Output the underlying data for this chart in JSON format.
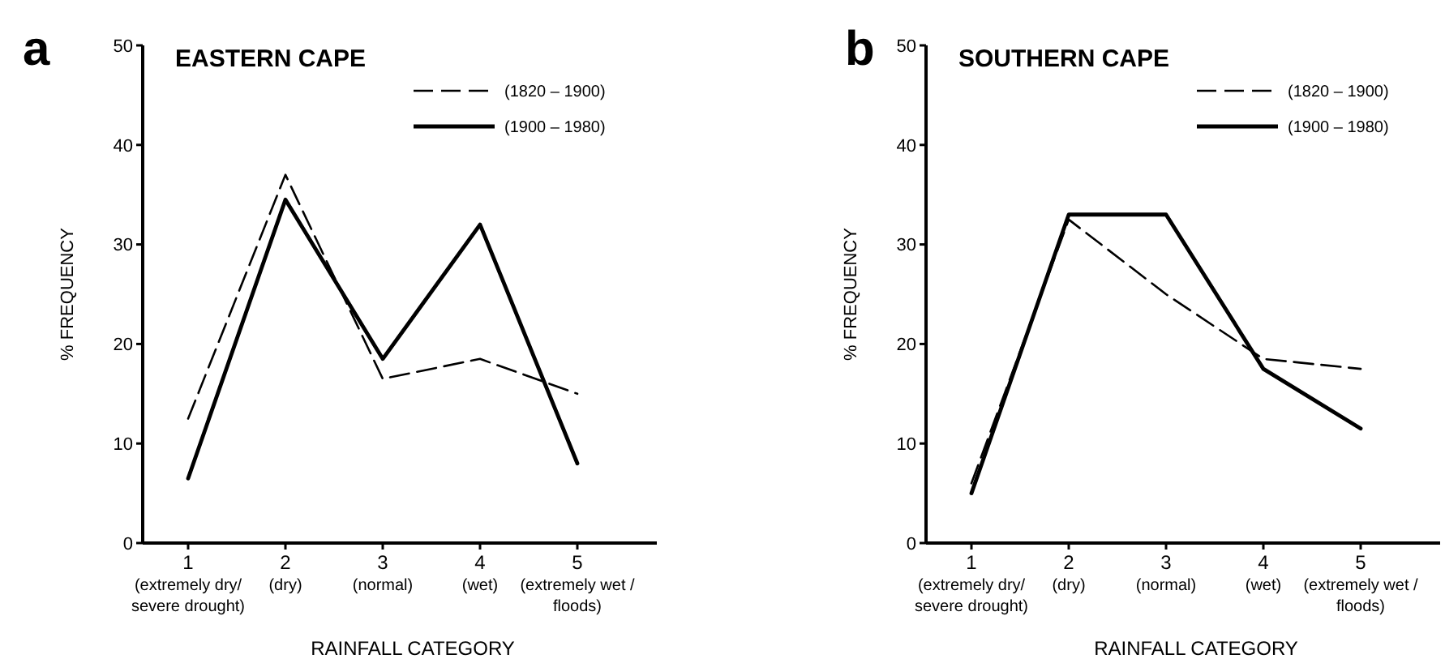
{
  "chart_data": [
    {
      "type": "line",
      "title": "EASTERN CAPE",
      "xlabel": "RAINFALL CATEGORY",
      "ylabel": "% FREQUENCY",
      "annotations": [
        "a"
      ],
      "categories": [
        "1\n(extremely dry/\nsevere drought)",
        "2\n(dry)",
        "3\n(normal)",
        "4\n(wet)",
        "5\n(extremely wet /\nfloods)"
      ],
      "ylim": [
        0,
        50
      ],
      "yticks": [
        0,
        10,
        20,
        30,
        40,
        50
      ],
      "grid": false,
      "legend": "top right",
      "marker": "none",
      "series": [
        {
          "name": "(1820 – 1900)",
          "color": "#000000",
          "line_style": "dashed",
          "values": [
            12.5,
            37,
            16.5,
            18.5,
            15
          ]
        },
        {
          "name": "(1900 – 1980)",
          "color": "#000000",
          "line_style": "solid",
          "values": [
            6.5,
            34.5,
            18.5,
            32,
            8
          ]
        }
      ]
    },
    {
      "type": "line",
      "title": "SOUTHERN CAPE",
      "xlabel": "RAINFALL CATEGORY",
      "ylabel": "% FREQUENCY",
      "annotations": [
        "b"
      ],
      "categories": [
        "1\n(extremely dry/\nsevere drought)",
        "2\n(dry)",
        "3\n(normal)",
        "4\n(wet)",
        "5\n(extremely wet /\nfloods)"
      ],
      "ylim": [
        0,
        50
      ],
      "yticks": [
        0,
        10,
        20,
        30,
        40,
        50
      ],
      "grid": false,
      "legend": "top right",
      "marker": "none",
      "series": [
        {
          "name": "(1820 – 1900)",
          "color": "#000000",
          "line_style": "dashed",
          "values": [
            6,
            32.5,
            25,
            18.5,
            17.5
          ]
        },
        {
          "name": "(1900 – 1980)",
          "color": "#000000",
          "line_style": "solid",
          "values": [
            5,
            33,
            33,
            17.5,
            11.5
          ]
        }
      ]
    }
  ]
}
